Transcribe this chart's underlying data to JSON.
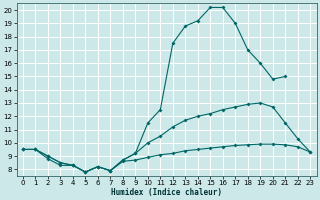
{
  "xlabel": "Humidex (Indice chaleur)",
  "bg_color": "#cce8e8",
  "grid_color": "#ffffff",
  "line_color": "#006666",
  "xlim": [
    -0.5,
    23.5
  ],
  "ylim": [
    7.5,
    20.5
  ],
  "xticks": [
    0,
    1,
    2,
    3,
    4,
    5,
    6,
    7,
    8,
    9,
    10,
    11,
    12,
    13,
    14,
    15,
    16,
    17,
    18,
    19,
    20,
    21,
    22,
    23
  ],
  "yticks": [
    8,
    9,
    10,
    11,
    12,
    13,
    14,
    15,
    16,
    17,
    18,
    19,
    20
  ],
  "line1_x": [
    0,
    1,
    2,
    3,
    4,
    5,
    6,
    7,
    8,
    9,
    10,
    11,
    12,
    13,
    14,
    15,
    16,
    17,
    18,
    19,
    20,
    21,
    22,
    23
  ],
  "line1_y": [
    9.5,
    9.5,
    8.8,
    8.3,
    8.3,
    7.8,
    8.2,
    7.9,
    8.6,
    8.7,
    8.9,
    9.1,
    9.2,
    9.4,
    9.5,
    9.6,
    9.7,
    9.8,
    9.85,
    9.9,
    9.9,
    9.85,
    9.7,
    9.3
  ],
  "line2_x": [
    0,
    1,
    2,
    3,
    4,
    5,
    6,
    7,
    8,
    9,
    10,
    11,
    12,
    13,
    14,
    15,
    16,
    17,
    18,
    19,
    20,
    21,
    22,
    23
  ],
  "line2_y": [
    9.5,
    9.5,
    9.0,
    8.5,
    8.3,
    7.8,
    8.2,
    7.9,
    8.7,
    9.2,
    10.0,
    10.5,
    11.2,
    11.7,
    12.0,
    12.2,
    12.5,
    12.7,
    12.9,
    13.0,
    12.7,
    11.5,
    10.3,
    9.3
  ],
  "line3_x": [
    0,
    1,
    2,
    3,
    4,
    5,
    6,
    7,
    8,
    9,
    10,
    11,
    12,
    13,
    14,
    15,
    16,
    17,
    18,
    19,
    20,
    21
  ],
  "line3_y": [
    9.5,
    9.5,
    9.0,
    8.5,
    8.3,
    7.8,
    8.2,
    7.9,
    8.7,
    9.2,
    11.5,
    12.5,
    17.5,
    18.8,
    19.2,
    20.2,
    20.2,
    19.0,
    17.0,
    16.0,
    14.8,
    15.0
  ]
}
